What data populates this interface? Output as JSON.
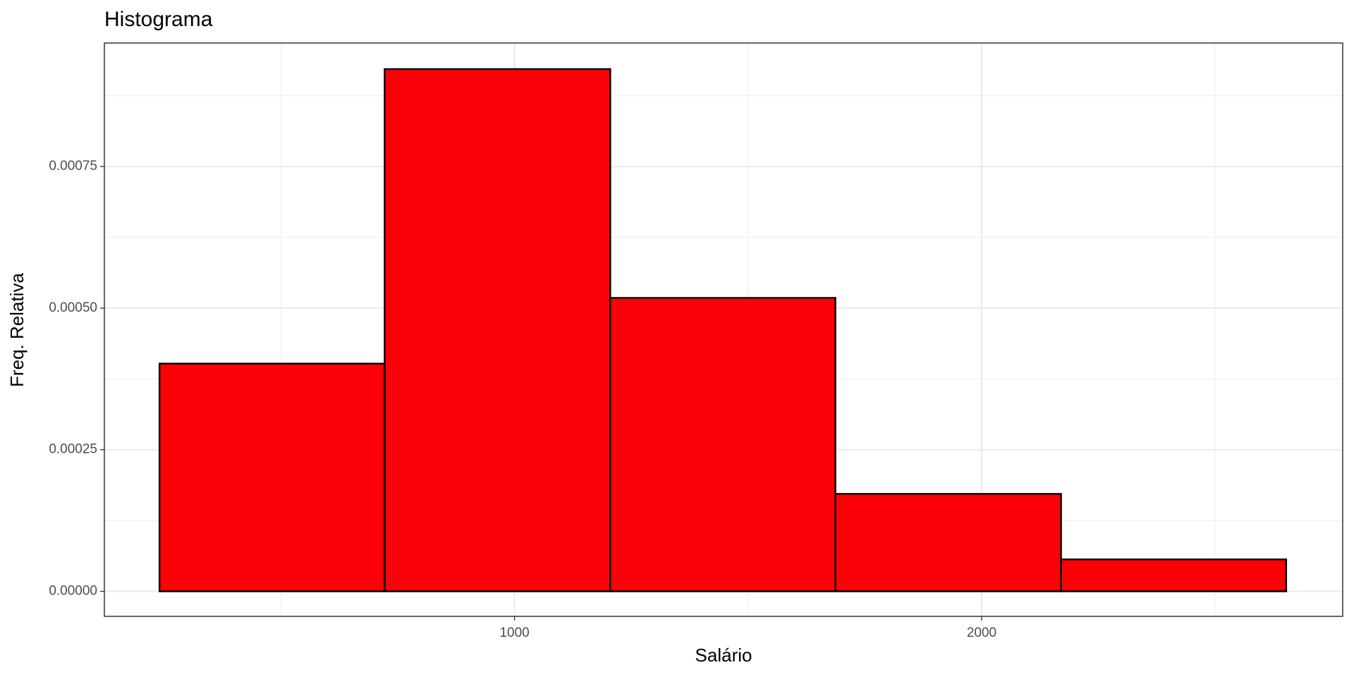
{
  "chart_data": {
    "type": "histogram",
    "title": "Histograma",
    "x_label": "Salário",
    "y_label": "Freq. Relativa",
    "bins": [
      240,
      722,
      1205,
      1687,
      2170,
      2652
    ],
    "values": [
      0.000402,
      0.000922,
      0.000518,
      0.000172,
      5.64e-05
    ],
    "color": "#fa0207",
    "edge_color": "#000000",
    "xlim": [
      122,
      2773
    ],
    "ylim": [
      -4.42e-05,
      0.000968
    ],
    "xticks": [
      1000,
      2000
    ],
    "yticks": [
      {
        "value": 0,
        "label": "0.00000"
      },
      {
        "value": 0.00025,
        "label": "0.00025"
      },
      {
        "value": 0.0005,
        "label": "0.00050"
      },
      {
        "value": 0.00075,
        "label": "0.00075"
      }
    ],
    "grid": true
  }
}
